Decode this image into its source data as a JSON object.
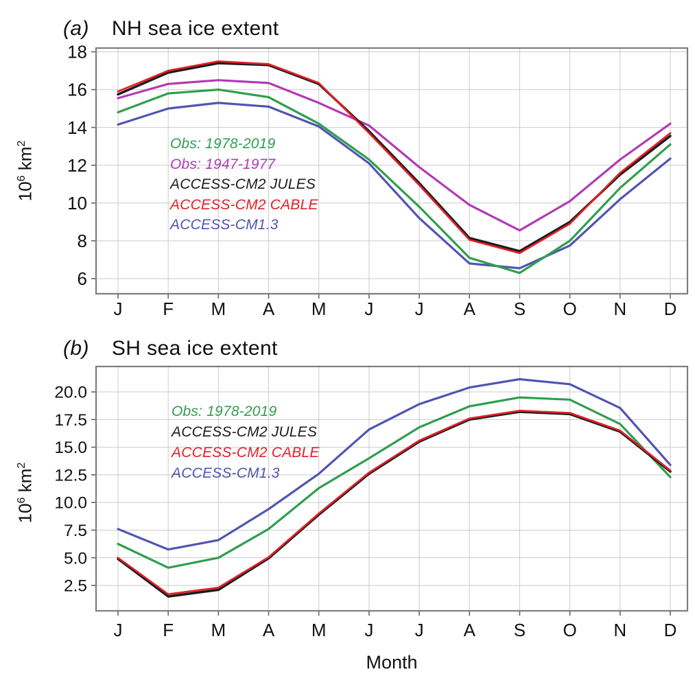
{
  "figure": {
    "xlabel": "Month",
    "ylabel_base1": "10",
    "ylabel_exp1": "6",
    "ylabel_base2": " km",
    "ylabel_exp2": "2",
    "background_color": "#ffffff",
    "gridline_color": "#cbcbcb",
    "frame_color": "#7d7d7d"
  },
  "chart_data": [
    {
      "panel_label": "(a)",
      "title": "NH sea ice extent",
      "type": "line",
      "categories": [
        "J",
        "F",
        "M",
        "A",
        "M",
        "J",
        "J",
        "A",
        "S",
        "O",
        "N",
        "D"
      ],
      "xlabel": "Month",
      "ylabel": "10^6 km^2",
      "ylim": [
        5.2,
        18.2
      ],
      "ytick_values": [
        6,
        8,
        10,
        12,
        14,
        16,
        18
      ],
      "ytick_labels": [
        "6",
        "8",
        "10",
        "12",
        "14",
        "16",
        "18"
      ],
      "grid": true,
      "legend_position": "inside-center-left",
      "series": [
        {
          "name": "Obs: 1978-2019",
          "color": "#2f9e4f",
          "values": [
            14.8,
            15.8,
            16.0,
            15.6,
            14.2,
            12.3,
            9.8,
            7.1,
            6.3,
            8.0,
            10.8,
            13.1
          ]
        },
        {
          "name": "Obs: 1947-1977",
          "color": "#b23ab5",
          "values": [
            15.55,
            16.3,
            16.5,
            16.35,
            15.3,
            14.1,
            11.9,
            9.9,
            8.55,
            10.1,
            12.3,
            14.2
          ]
        },
        {
          "name": "ACCESS-CM2 JULES",
          "color": "#1c1c1c",
          "values": [
            15.75,
            16.9,
            17.4,
            17.3,
            16.3,
            13.8,
            11.05,
            8.15,
            7.45,
            9.0,
            11.5,
            13.55
          ]
        },
        {
          "name": "ACCESS-CM2 CABLE",
          "color": "#e22028",
          "values": [
            15.9,
            17.0,
            17.5,
            17.35,
            16.35,
            13.7,
            10.95,
            8.05,
            7.35,
            8.9,
            11.6,
            13.7
          ]
        },
        {
          "name": "ACCESS-CM1.3",
          "color": "#4f55b0",
          "values": [
            14.15,
            15.0,
            15.3,
            15.1,
            14.05,
            12.1,
            9.2,
            6.8,
            6.55,
            7.75,
            10.2,
            12.35
          ]
        }
      ],
      "draw_order": [
        1,
        4,
        0,
        2,
        3
      ]
    },
    {
      "panel_label": "(b)",
      "title": "SH sea ice extent",
      "type": "line",
      "categories": [
        "J",
        "F",
        "M",
        "A",
        "M",
        "J",
        "J",
        "A",
        "S",
        "O",
        "N",
        "D"
      ],
      "xlabel": "Month",
      "ylabel": "10^6 km^2",
      "ylim": [
        0.2,
        22.3
      ],
      "ytick_values": [
        2.5,
        5.0,
        7.5,
        10.0,
        12.5,
        15.0,
        17.5,
        20.0
      ],
      "ytick_labels": [
        "2.5",
        "5.0",
        "7.5",
        "10.0",
        "12.5",
        "15.0",
        "17.5",
        "20.0"
      ],
      "grid": true,
      "legend_position": "inside-upper-left",
      "series": [
        {
          "name": "Obs: 1978-2019",
          "color": "#2f9e4f",
          "values": [
            6.25,
            4.1,
            5.0,
            7.6,
            11.3,
            14.0,
            16.8,
            18.7,
            19.5,
            19.3,
            17.1,
            12.3
          ]
        },
        {
          "name": "ACCESS-CM2 JULES",
          "color": "#1c1c1c",
          "values": [
            4.9,
            1.5,
            2.1,
            4.95,
            8.9,
            12.6,
            15.5,
            17.5,
            18.2,
            18.0,
            16.4,
            12.8
          ]
        },
        {
          "name": "ACCESS-CM2 CABLE",
          "color": "#e22028",
          "values": [
            5.0,
            1.7,
            2.3,
            5.05,
            9.0,
            12.7,
            15.6,
            17.6,
            18.3,
            18.1,
            16.5,
            12.9
          ]
        },
        {
          "name": "ACCESS-CM1.3",
          "color": "#4f55b0",
          "values": [
            7.6,
            5.75,
            6.6,
            9.4,
            12.6,
            16.6,
            18.9,
            20.4,
            21.15,
            20.7,
            18.55,
            13.4
          ]
        }
      ],
      "draw_order": [
        3,
        0,
        1,
        2
      ]
    }
  ]
}
